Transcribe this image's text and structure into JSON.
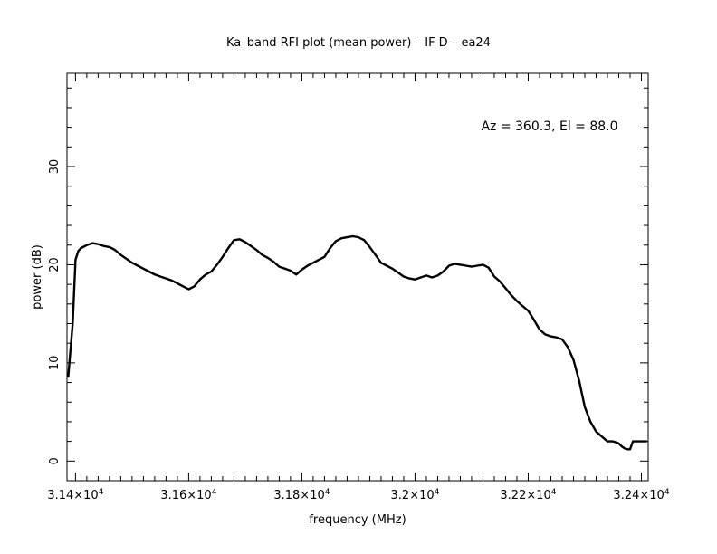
{
  "chart_data": {
    "type": "line",
    "title": "Ka–band RFI plot (mean power) – IF D – ea24",
    "xlabel": "frequency (MHz)",
    "ylabel": "power (dB)",
    "annotation": "Az = 360.3, El = 88.0",
    "xlim": [
      31385,
      32412
    ],
    "ylim": [
      -2,
      39.5
    ],
    "x_ticks": [
      {
        "value": 31400,
        "mantissa": "3.14",
        "exp": "4"
      },
      {
        "value": 31600,
        "mantissa": "3.16",
        "exp": "4"
      },
      {
        "value": 31800,
        "mantissa": "3.18",
        "exp": "4"
      },
      {
        "value": 32000,
        "mantissa": "3.2",
        "exp": "4"
      },
      {
        "value": 32200,
        "mantissa": "3.22",
        "exp": "4"
      },
      {
        "value": 32400,
        "mantissa": "3.24",
        "exp": "4"
      }
    ],
    "y_ticks": [
      0,
      10,
      20,
      30
    ],
    "grid": false,
    "legend": "none",
    "color": "#000000",
    "series": [
      {
        "x": [
          31387,
          31390,
          31395,
          31400,
          31405,
          31410,
          31420,
          31430,
          31440,
          31450,
          31460,
          31470,
          31480,
          31490,
          31500,
          31510,
          31520,
          31530,
          31540,
          31550,
          31560,
          31570,
          31580,
          31590,
          31600,
          31610,
          31620,
          31630,
          31640,
          31650,
          31660,
          31670,
          31680,
          31690,
          31700,
          31710,
          31720,
          31730,
          31740,
          31750,
          31760,
          31770,
          31780,
          31790,
          31800,
          31810,
          31820,
          31830,
          31840,
          31850,
          31860,
          31870,
          31880,
          31890,
          31900,
          31910,
          31920,
          31930,
          31940,
          31950,
          31960,
          31970,
          31980,
          31990,
          32000,
          32010,
          32020,
          32030,
          32040,
          32050,
          32060,
          32070,
          32080,
          32090,
          32100,
          32110,
          32120,
          32130,
          32140,
          32150,
          32160,
          32170,
          32180,
          32190,
          32200,
          32210,
          32220,
          32230,
          32240,
          32250,
          32260,
          32270,
          32280,
          32290,
          32300,
          32310,
          32320,
          32330,
          32340,
          32350,
          32360,
          32365,
          32370,
          32375,
          32380,
          32385,
          32390,
          32395,
          32400,
          32405,
          32410
        ],
        "y": [
          8.5,
          10.5,
          14.0,
          20.5,
          21.4,
          21.7,
          22.0,
          22.2,
          22.1,
          21.9,
          21.8,
          21.5,
          21.0,
          20.6,
          20.2,
          19.9,
          19.6,
          19.3,
          19.0,
          18.8,
          18.6,
          18.4,
          18.1,
          17.8,
          17.5,
          17.8,
          18.5,
          19.0,
          19.3,
          20.0,
          20.8,
          21.7,
          22.5,
          22.6,
          22.3,
          21.9,
          21.5,
          21.0,
          20.7,
          20.3,
          19.8,
          19.6,
          19.4,
          19.0,
          19.5,
          19.9,
          20.2,
          20.5,
          20.8,
          21.7,
          22.4,
          22.7,
          22.8,
          22.9,
          22.8,
          22.5,
          21.8,
          21.0,
          20.2,
          19.9,
          19.6,
          19.2,
          18.8,
          18.6,
          18.5,
          18.7,
          18.9,
          18.7,
          18.9,
          19.3,
          19.9,
          20.1,
          20.0,
          19.9,
          19.8,
          19.9,
          20.0,
          19.7,
          18.8,
          18.3,
          17.6,
          16.9,
          16.3,
          15.8,
          15.3,
          14.4,
          13.4,
          12.9,
          12.7,
          12.6,
          12.4,
          11.6,
          10.3,
          8.2,
          5.5,
          4.0,
          3.0,
          2.5,
          2.0,
          2.0,
          1.8,
          1.5,
          1.3,
          1.2,
          1.2,
          2.0,
          2.0,
          2.0,
          2.0,
          2.0,
          2.0
        ]
      }
    ]
  }
}
